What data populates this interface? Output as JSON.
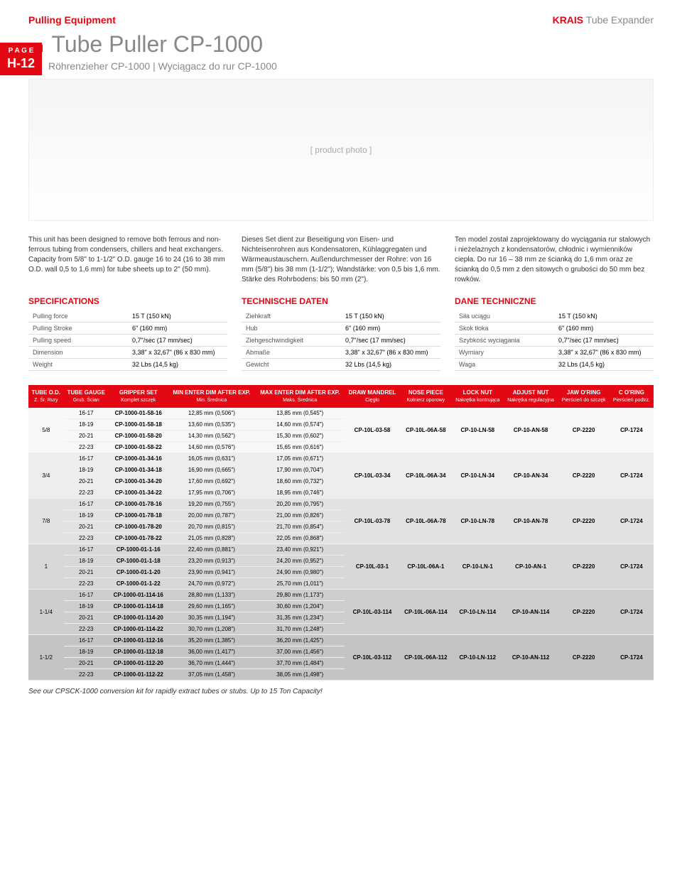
{
  "header": {
    "category": "Pulling Equipment",
    "brandRed": "KRAIS",
    "brandSub": "Tube Expander"
  },
  "pageTab": {
    "label": "P A G E",
    "num": "H-12"
  },
  "title": {
    "main": "Tube Puller CP-1000",
    "sub": "Röhrenzieher CP-1000 | Wyciągacz do rur CP-1000"
  },
  "descriptions": [
    "This unit has been designed to remove both ferrous and non-ferrous tubing from condensers, chillers and heat exchangers. Capacity from 5/8\" to 1-1/2\" O.D. gauge 16 to 24 (16 to 38 mm O.D. wall 0,5 to 1,6 mm) for tube sheets up to 2\" (50 mm).",
    "Dieses Set dient zur Beseitigung von Eisen- und Nichteisenrohren aus Kondensatoren, Kühlaggregaten und Wärmeaustauschern. Außendurchmesser der Rohre: von 16 mm (5/8\") bis 38 mm (1-1/2\"); Wandstärke: von 0,5 bis 1,6 mm. Stärke des Rohrbodens: bis 50 mm (2\").",
    "Ten model został zaprojektowany do wyciągania rur stalowych i nieżelaznych z kondensatorów, chłodnic i wymienników ciepła. Do rur 16 – 38 mm ze ścianką do 1,6 mm oraz ze ścianką do 0,5 mm z den sitowych o grubości do 50 mm bez rowków."
  ],
  "specSections": [
    {
      "title": "SPECIFICATIONS",
      "rows": [
        [
          "Pulling force",
          "15 T (150 kN)"
        ],
        [
          "Pulling Stroke",
          "6\" (160 mm)"
        ],
        [
          "Pulling speed",
          "0,7\"/sec (17 mm/sec)"
        ],
        [
          "Dimension",
          "3,38\" x 32,67\" (86 x 830 mm)"
        ],
        [
          "Weight",
          "32 Lbs (14,5 kg)"
        ]
      ]
    },
    {
      "title": "TECHNISCHE DATEN",
      "rows": [
        [
          "Ziehkraft",
          "15 T (150 kN)"
        ],
        [
          "Hub",
          "6\" (160 mm)"
        ],
        [
          "Ziehgeschwindigkeit",
          "0,7\"/sec (17 mm/sec)"
        ],
        [
          "Abmaße",
          "3,38\" x 32,67\" (86 x 830 mm)"
        ],
        [
          "Gewicht",
          "32 Lbs (14,5 kg)"
        ]
      ]
    },
    {
      "title": "DANE TECHNICZNE",
      "rows": [
        [
          "Siła uciągu",
          "15 T (150 kN)"
        ],
        [
          "Skok tłoka",
          "6\" (160 mm)"
        ],
        [
          "Szybkość wyciągania",
          "0,7\"/sec (17 mm/sec)"
        ],
        [
          "Wymiary",
          "3,38\" x 32,67\" (86 x 830 mm)"
        ],
        [
          "Waga",
          "32 Lbs (14,5 kg)"
        ]
      ]
    }
  ],
  "mainTable": {
    "headers": [
      {
        "t": "TUBE O.D.",
        "s": "Z. Śr. Rury"
      },
      {
        "t": "TUBE GAUGE",
        "s": "Grub. Ścian"
      },
      {
        "t": "GRIPPER SET",
        "s": "Komplet szczęk"
      },
      {
        "t": "MIN ENTER DIM AFTER EXP.",
        "s": "Min. Średnica"
      },
      {
        "t": "MAX ENTER DIM AFTER EXP.",
        "s": "Maks. Średnica"
      },
      {
        "t": "DRAW MANDREL",
        "s": "Cięgło"
      },
      {
        "t": "NOSE PIECE",
        "s": "Kołnierz oporowy"
      },
      {
        "t": "LOCK NUT",
        "s": "Nakrętka kontrująca"
      },
      {
        "t": "ADJUST NUT",
        "s": "Nakrętka regulacyjna"
      },
      {
        "t": "JAW O'RING",
        "s": "Pierścień do szczęk"
      },
      {
        "t": "C O'RING",
        "s": "Pierścień podtrz."
      }
    ],
    "groups": [
      {
        "od": "5/8",
        "shade": "g0",
        "mandrel": "CP-10L-03-58",
        "nose": "CP-10L-06A-58",
        "lock": "CP-10-LN-58",
        "adjust": "CP-10-AN-58",
        "jaw": "CP-2220",
        "cring": "CP-1724",
        "rows": [
          [
            "16-17",
            "CP-1000-01-58-16",
            "12,85 mm (0,506\")",
            "13,85 mm (0,545\")"
          ],
          [
            "18-19",
            "CP-1000-01-58-18",
            "13,60 mm (0,535\")",
            "14,60 mm (0,574\")"
          ],
          [
            "20-21",
            "CP-1000-01-58-20",
            "14,30 mm (0,562\")",
            "15,30 mm (0,602\")"
          ],
          [
            "22-23",
            "CP-1000-01-58-22",
            "14,60 mm (0,576\")",
            "15,65 mm (0,616\")"
          ]
        ]
      },
      {
        "od": "3/4",
        "shade": "g1",
        "mandrel": "CP-10L-03-34",
        "nose": "CP-10L-06A-34",
        "lock": "CP-10-LN-34",
        "adjust": "CP-10-AN-34",
        "jaw": "CP-2220",
        "cring": "CP-1724",
        "rows": [
          [
            "16-17",
            "CP-1000-01-34-16",
            "16,05 mm (0,631\")",
            "17,05 mm (0,671\")"
          ],
          [
            "18-19",
            "CP-1000-01-34-18",
            "16,90 mm (0,665\")",
            "17,90 mm (0,704\")"
          ],
          [
            "20-21",
            "CP-1000-01-34-20",
            "17,60 mm (0,692\")",
            "18,60 mm (0,732\")"
          ],
          [
            "22-23",
            "CP-1000-01-34-22",
            "17,95 mm (0,706\")",
            "18,95 mm (0,746\")"
          ]
        ]
      },
      {
        "od": "7/8",
        "shade": "g2",
        "mandrel": "CP-10L-03-78",
        "nose": "CP-10L-06A-78",
        "lock": "CP-10-LN-78",
        "adjust": "CP-10-AN-78",
        "jaw": "CP-2220",
        "cring": "CP-1724",
        "rows": [
          [
            "16-17",
            "CP-1000-01-78-16",
            "19,20 mm (0,755\")",
            "20,20 mm (0,795\")"
          ],
          [
            "18-19",
            "CP-1000-01-78-18",
            "20,00 mm (0,787\")",
            "21,00 mm (0,826\")"
          ],
          [
            "20-21",
            "CP-1000-01-78-20",
            "20,70 mm (0,815\")",
            "21,70 mm (0,854\")"
          ],
          [
            "22-23",
            "CP-1000-01-78-22",
            "21,05 mm (0,828\")",
            "22,05 mm (0,868\")"
          ]
        ]
      },
      {
        "od": "1",
        "shade": "g3",
        "mandrel": "CP-10L-03-1",
        "nose": "CP-10L-06A-1",
        "lock": "CP-10-LN-1",
        "adjust": "CP-10-AN-1",
        "jaw": "CP-2220",
        "cring": "CP-1724",
        "rows": [
          [
            "16-17",
            "CP-1000-01-1-16",
            "22,40 mm (0,881\")",
            "23,40 mm (0,921\")"
          ],
          [
            "18-19",
            "CP-1000-01-1-18",
            "23,20 mm (0,913\")",
            "24,20 mm (0,952\")"
          ],
          [
            "20-21",
            "CP-1000-01-1-20",
            "23,90 mm (0,941\")",
            "24,90 mm (0,980\")"
          ],
          [
            "22-23",
            "CP-1000-01-1-22",
            "24,70 mm (0,972\")",
            "25,70 mm (1,011\")"
          ]
        ]
      },
      {
        "od": "1-1/4",
        "shade": "g4",
        "mandrel": "CP-10L-03-114",
        "nose": "CP-10L-06A-114",
        "lock": "CP-10-LN-114",
        "adjust": "CP-10-AN-114",
        "jaw": "CP-2220",
        "cring": "CP-1724",
        "rows": [
          [
            "16-17",
            "CP-1000-01-114-16",
            "28,80 mm (1,133\")",
            "29,80 mm (1,173\")"
          ],
          [
            "18-19",
            "CP-1000-01-114-18",
            "29,60 mm (1,165\")",
            "30,60 mm (1,204\")"
          ],
          [
            "20-21",
            "CP-1000-01-114-20",
            "30,35 mm (1,194\")",
            "31,35 mm (1,234\")"
          ],
          [
            "22-23",
            "CP-1000-01-114-22",
            "30,70 mm (1,208\")",
            "31,70 mm (1,248\")"
          ]
        ]
      },
      {
        "od": "1-1/2",
        "shade": "g5",
        "mandrel": "CP-10L-03-112",
        "nose": "CP-10L-06A-112",
        "lock": "CP-10-LN-112",
        "adjust": "CP-10-AN-112",
        "jaw": "CP-2220",
        "cring": "CP-1724",
        "rows": [
          [
            "16-17",
            "CP-1000-01-112-16",
            "35,20 mm (1,385\")",
            "36,20 mm (1,425\")"
          ],
          [
            "18-19",
            "CP-1000-01-112-18",
            "36,00 mm (1,417\")",
            "37,00 mm (1,456\")"
          ],
          [
            "20-21",
            "CP-1000-01-112-20",
            "36,70 mm (1,444\")",
            "37,70 mm (1,484\")"
          ],
          [
            "22-23",
            "CP-1000-01-112-22",
            "37,05 mm (1,458\")",
            "38,05 mm (1,498\")"
          ]
        ]
      }
    ]
  },
  "footnote": "See our CPSCK-1000 conversion kit for rapidly extract tubes or stubs. Up to 15 Ton Capacity!"
}
